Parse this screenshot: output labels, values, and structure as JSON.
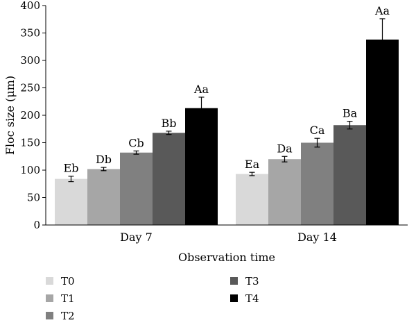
{
  "chart_data": {
    "type": "bar",
    "title": "",
    "xlabel": "Observation time",
    "ylabel": "Floc size (μm)",
    "ylim": [
      0,
      400
    ],
    "yticks": [
      0,
      50,
      100,
      150,
      200,
      250,
      300,
      350,
      400
    ],
    "grid": false,
    "legend_position": "bottom",
    "categories": [
      "Day 7",
      "Day 14"
    ],
    "series": [
      {
        "name": "T0",
        "color": "#d9d9d9",
        "values": [
          84,
          93
        ],
        "errors": [
          5,
          3
        ],
        "labels": [
          "Eb",
          "Ea"
        ]
      },
      {
        "name": "T1",
        "color": "#a6a6a6",
        "values": [
          102,
          120
        ],
        "errors": [
          3,
          5
        ],
        "labels": [
          "Db",
          "Da"
        ]
      },
      {
        "name": "T2",
        "color": "#808080",
        "values": [
          132,
          150
        ],
        "errors": [
          3,
          8
        ],
        "labels": [
          "Cb",
          "Ca"
        ]
      },
      {
        "name": "T3",
        "color": "#595959",
        "values": [
          168,
          182
        ],
        "errors": [
          3,
          7
        ],
        "labels": [
          "Bb",
          "Ba"
        ]
      },
      {
        "name": "T4",
        "color": "#000000",
        "values": [
          213,
          338
        ],
        "errors": [
          20,
          38
        ],
        "labels": [
          "Aa",
          "Aa"
        ]
      }
    ]
  }
}
